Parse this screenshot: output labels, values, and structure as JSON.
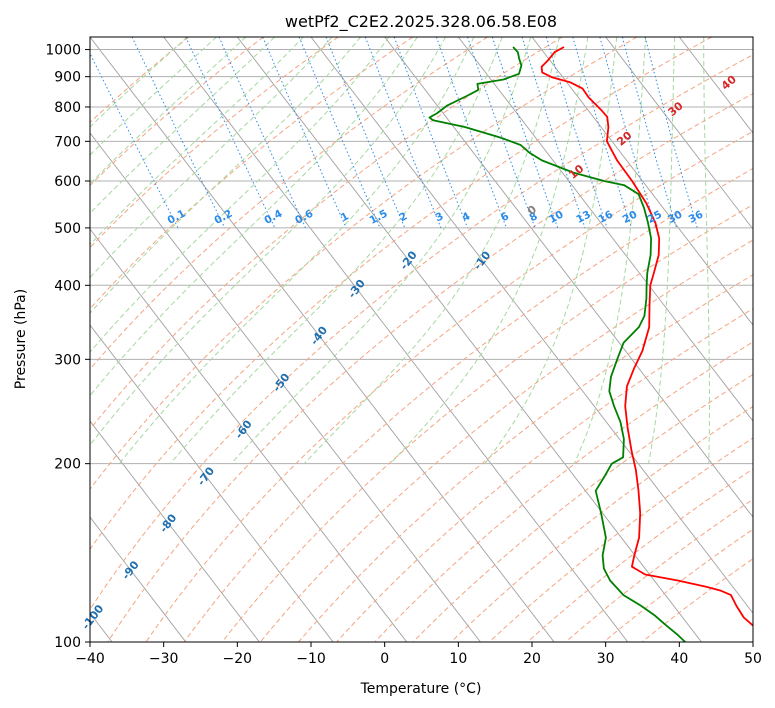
{
  "chart_data": {
    "type": "line",
    "subtype": "skew-T log-p diagram",
    "title": "wetPf2_C2E2.2025.328.06.58.E08",
    "xlabel": "Temperature (°C)",
    "ylabel": "Pressure (hPa)",
    "xlim": [
      -40,
      50
    ],
    "ylim": [
      1050,
      100
    ],
    "x_ticks": [
      -40,
      -30,
      -20,
      -10,
      0,
      10,
      20,
      30,
      40,
      50
    ],
    "x_tick_labels": [
      "−40",
      "−30",
      "−20",
      "−10",
      "0",
      "10",
      "20",
      "30",
      "40",
      "50"
    ],
    "p_ticks": [
      100,
      200,
      300,
      400,
      500,
      600,
      700,
      800,
      900,
      1000
    ],
    "p_tick_labels": [
      "100",
      "200",
      "300",
      "400",
      "500",
      "600",
      "700",
      "800",
      "900",
      "1000"
    ],
    "isotherm_labels": [
      {
        "text": "-100",
        "value": -100
      },
      {
        "text": "-90",
        "value": -90
      },
      {
        "text": "-80",
        "value": -80
      },
      {
        "text": "-70",
        "value": -70
      },
      {
        "text": "-60",
        "value": -60
      },
      {
        "text": "-50",
        "value": -50
      },
      {
        "text": "-40",
        "value": -40
      },
      {
        "text": "-30",
        "value": -30
      },
      {
        "text": "-20",
        "value": -20
      },
      {
        "text": "-10",
        "value": -10
      }
    ],
    "mixing_ratio_labels": [
      "0.1",
      "0.2",
      "0.4",
      "0.6",
      "1",
      "1.5",
      "2",
      "3",
      "4",
      "6",
      "8",
      "10",
      "13",
      "16",
      "20",
      "25",
      "30",
      "36"
    ],
    "moist_adiabat_labels": [
      "0",
      "10",
      "20",
      "30",
      "40"
    ],
    "series": [
      {
        "name": "Temperature",
        "color": "#ff0000",
        "points": [
          {
            "p": 1010,
            "t": 23.3
          },
          {
            "p": 990,
            "t": 21.5
          },
          {
            "p": 960,
            "t": 19.8
          },
          {
            "p": 935,
            "t": 18.2
          },
          {
            "p": 915,
            "t": 17.7
          },
          {
            "p": 898,
            "t": 18.5
          },
          {
            "p": 880,
            "t": 20.5
          },
          {
            "p": 860,
            "t": 21.5
          },
          {
            "p": 830,
            "t": 21.4
          },
          {
            "p": 810,
            "t": 21.6
          },
          {
            "p": 790,
            "t": 21.8
          },
          {
            "p": 770,
            "t": 21.9
          },
          {
            "p": 740,
            "t": 21.0
          },
          {
            "p": 700,
            "t": 19.3
          },
          {
            "p": 650,
            "t": 18.7
          },
          {
            "p": 600,
            "t": 18.6
          },
          {
            "p": 550,
            "t": 18.2
          },
          {
            "p": 510,
            "t": 17.4
          },
          {
            "p": 480,
            "t": 16.3
          },
          {
            "p": 450,
            "t": 14.5
          },
          {
            "p": 420,
            "t": 12.0
          },
          {
            "p": 400,
            "t": 10.2
          },
          {
            "p": 370,
            "t": 8.0
          },
          {
            "p": 340,
            "t": 5.7
          },
          {
            "p": 310,
            "t": 2.3
          },
          {
            "p": 290,
            "t": -0.6
          },
          {
            "p": 270,
            "t": -3.5
          },
          {
            "p": 250,
            "t": -5.8
          },
          {
            "p": 230,
            "t": -7.7
          },
          {
            "p": 210,
            "t": -9.6
          },
          {
            "p": 195,
            "t": -11.0
          },
          {
            "p": 180,
            "t": -12.8
          },
          {
            "p": 165,
            "t": -14.9
          },
          {
            "p": 150,
            "t": -17.6
          },
          {
            "p": 140,
            "t": -20.1
          },
          {
            "p": 134,
            "t": -21.6
          },
          {
            "p": 130,
            "t": -20.6
          },
          {
            "p": 127,
            "t": -16.8
          },
          {
            "p": 124,
            "t": -13.6
          },
          {
            "p": 122,
            "t": -12.0
          },
          {
            "p": 120,
            "t": -11.1
          },
          {
            "p": 115,
            "t": -11.5
          },
          {
            "p": 110,
            "t": -11.7
          },
          {
            "p": 105,
            "t": -11.1
          },
          {
            "p": 100,
            "t": -9.6
          }
        ]
      },
      {
        "name": "Dewpoint",
        "color": "#008000",
        "points": [
          {
            "p": 1010,
            "t": 16.4
          },
          {
            "p": 990,
            "t": 16.5
          },
          {
            "p": 965,
            "t": 16.0
          },
          {
            "p": 940,
            "t": 15.6
          },
          {
            "p": 910,
            "t": 14.4
          },
          {
            "p": 890,
            "t": 11.7
          },
          {
            "p": 875,
            "t": 7.7
          },
          {
            "p": 855,
            "t": 7.2
          },
          {
            "p": 835,
            "t": 5.0
          },
          {
            "p": 805,
            "t": 1.4
          },
          {
            "p": 780,
            "t": -0.9
          },
          {
            "p": 768,
            "t": -2.3
          },
          {
            "p": 760,
            "t": -2.1
          },
          {
            "p": 740,
            "t": 1.5
          },
          {
            "p": 710,
            "t": 5.3
          },
          {
            "p": 690,
            "t": 7.2
          },
          {
            "p": 670,
            "t": 7.6
          },
          {
            "p": 650,
            "t": 8.5
          },
          {
            "p": 620,
            "t": 11.5
          },
          {
            "p": 600,
            "t": 14.8
          },
          {
            "p": 590,
            "t": 17.1
          },
          {
            "p": 570,
            "t": 18.1
          },
          {
            "p": 540,
            "t": 17.4
          },
          {
            "p": 510,
            "t": 16.4
          },
          {
            "p": 480,
            "t": 15.2
          },
          {
            "p": 450,
            "t": 13.4
          },
          {
            "p": 420,
            "t": 11.1
          },
          {
            "p": 400,
            "t": 9.7
          },
          {
            "p": 380,
            "t": 8.3
          },
          {
            "p": 355,
            "t": 6.2
          },
          {
            "p": 340,
            "t": 4.3
          },
          {
            "p": 320,
            "t": 0.6
          },
          {
            "p": 300,
            "t": -2.0
          },
          {
            "p": 280,
            "t": -4.7
          },
          {
            "p": 265,
            "t": -6.4
          },
          {
            "p": 250,
            "t": -7.3
          },
          {
            "p": 235,
            "t": -8.1
          },
          {
            "p": 220,
            "t": -9.4
          },
          {
            "p": 205,
            "t": -11.4
          },
          {
            "p": 200,
            "t": -13.6
          },
          {
            "p": 190,
            "t": -16.0
          },
          {
            "p": 180,
            "t": -18.6
          },
          {
            "p": 165,
            "t": -20.2
          },
          {
            "p": 150,
            "t": -22.1
          },
          {
            "p": 140,
            "t": -24.4
          },
          {
            "p": 133,
            "t": -25.6
          },
          {
            "p": 127,
            "t": -26.0
          },
          {
            "p": 120,
            "t": -25.7
          },
          {
            "p": 115,
            "t": -24.4
          },
          {
            "p": 111,
            "t": -23.6
          },
          {
            "p": 107,
            "t": -23.1
          },
          {
            "p": 103,
            "t": -22.5
          },
          {
            "p": 100,
            "t": -22.2
          }
        ]
      }
    ]
  },
  "colors": {
    "isotherm": "#808080",
    "dry_adiabat": "#f4a582",
    "moist_adiabat": "#a6d8a0",
    "mixing_ratio": "#2b8be8",
    "isotherm_label": "#1f6fb0",
    "moist_label": "#d62728",
    "dry_zero_label": "#808080",
    "pressure_grid": "#b0b0b0"
  }
}
